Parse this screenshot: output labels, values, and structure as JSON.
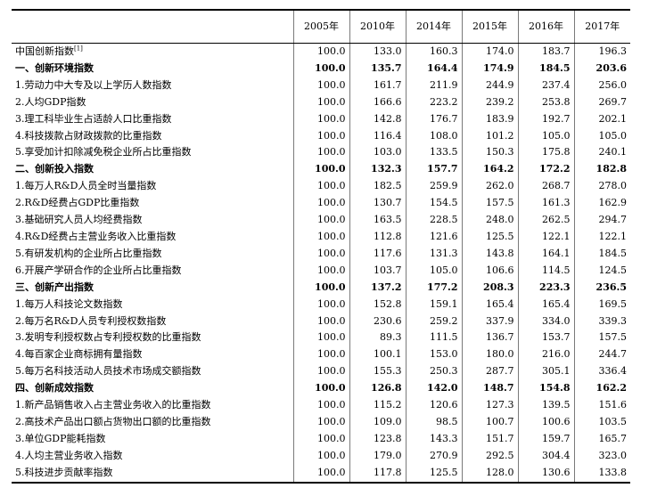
{
  "years": [
    "2005年",
    "2010年",
    "2014年",
    "2015年",
    "2016年",
    "2017年"
  ],
  "rows": [
    {
      "label": "中国创新指数",
      "note": "[1]",
      "bold": false,
      "values": [
        "100.0",
        "133.0",
        "160.3",
        "174.0",
        "183.7",
        "196.3"
      ]
    },
    {
      "label": "一、创新环境指数",
      "bold": true,
      "values": [
        "100.0",
        "135.7",
        "164.4",
        "174.9",
        "184.5",
        "203.6"
      ]
    },
    {
      "label": "1.劳动力中大专及以上学历人数指数",
      "bold": false,
      "values": [
        "100.0",
        "161.7",
        "211.9",
        "244.9",
        "237.4",
        "256.0"
      ]
    },
    {
      "label": "2.人均GDP指数",
      "bold": false,
      "values": [
        "100.0",
        "166.6",
        "223.2",
        "239.2",
        "253.8",
        "269.7"
      ]
    },
    {
      "label": "3.理工科毕业生占适龄人口比重指数",
      "bold": false,
      "values": [
        "100.0",
        "142.8",
        "176.7",
        "183.9",
        "192.7",
        "202.1"
      ]
    },
    {
      "label": "4.科技拨款占财政拨款的比重指数",
      "bold": false,
      "values": [
        "100.0",
        "116.4",
        "108.0",
        "101.2",
        "105.0",
        "105.0"
      ]
    },
    {
      "label": "5.享受加计扣除减免税企业所占比重指数",
      "bold": false,
      "values": [
        "100.0",
        "103.0",
        "133.5",
        "150.3",
        "175.8",
        "240.1"
      ]
    },
    {
      "label": "二、创新投入指数",
      "bold": true,
      "values": [
        "100.0",
        "132.3",
        "157.7",
        "164.2",
        "172.2",
        "182.8"
      ]
    },
    {
      "label": "1.每万人R&D人员全时当量指数",
      "bold": false,
      "values": [
        "100.0",
        "182.5",
        "259.9",
        "262.0",
        "268.7",
        "278.0"
      ]
    },
    {
      "label": "2.R&D经费占GDP比重指数",
      "bold": false,
      "values": [
        "100.0",
        "130.7",
        "154.5",
        "157.5",
        "161.3",
        "162.9"
      ]
    },
    {
      "label": "3.基础研究人员人均经费指数",
      "bold": false,
      "values": [
        "100.0",
        "163.5",
        "228.5",
        "248.0",
        "262.5",
        "294.7"
      ]
    },
    {
      "label": "4.R&D经费占主营业务收入比重指数",
      "bold": false,
      "values": [
        "100.0",
        "112.8",
        "121.6",
        "125.5",
        "122.1",
        "122.1"
      ]
    },
    {
      "label": "5.有研发机构的企业所占比重指数",
      "bold": false,
      "values": [
        "100.0",
        "117.6",
        "131.3",
        "143.8",
        "164.1",
        "184.5"
      ]
    },
    {
      "label": "6.开展产学研合作的企业所占比重指数",
      "bold": false,
      "values": [
        "100.0",
        "103.7",
        "105.0",
        "106.6",
        "114.5",
        "124.5"
      ]
    },
    {
      "label": "三、创新产出指数",
      "bold": true,
      "values": [
        "100.0",
        "137.2",
        "177.2",
        "208.3",
        "223.3",
        "236.5"
      ]
    },
    {
      "label": "1.每万人科技论文数指数",
      "bold": false,
      "values": [
        "100.0",
        "152.8",
        "159.1",
        "165.4",
        "165.4",
        "169.5"
      ]
    },
    {
      "label": "2.每万名R&D人员专利授权数指数",
      "bold": false,
      "values": [
        "100.0",
        "230.6",
        "259.2",
        "337.9",
        "334.0",
        "339.3"
      ]
    },
    {
      "label": "3.发明专利授权数占专利授权数的比重指数",
      "bold": false,
      "values": [
        "100.0",
        "89.3",
        "111.5",
        "136.7",
        "153.7",
        "157.5"
      ]
    },
    {
      "label": "4.每百家企业商标拥有量指数",
      "bold": false,
      "values": [
        "100.0",
        "100.1",
        "153.0",
        "180.0",
        "216.0",
        "244.7"
      ]
    },
    {
      "label": "5.每万名科技活动人员技术市场成交额指数",
      "bold": false,
      "values": [
        "100.0",
        "155.3",
        "250.3",
        "287.7",
        "305.1",
        "336.4"
      ]
    },
    {
      "label": "四、创新成效指数",
      "bold": true,
      "values": [
        "100.0",
        "126.8",
        "142.0",
        "148.7",
        "154.8",
        "162.2"
      ]
    },
    {
      "label": "1.新产品销售收入占主营业务收入的比重指数",
      "bold": false,
      "values": [
        "100.0",
        "115.2",
        "120.6",
        "127.3",
        "139.5",
        "151.6"
      ]
    },
    {
      "label": "2.高技术产品出口额占货物出口额的比重指数",
      "bold": false,
      "values": [
        "100.0",
        "109.0",
        "98.5",
        "100.7",
        "100.6",
        "103.5"
      ]
    },
    {
      "label": "3.单位GDP能耗指数",
      "bold": false,
      "values": [
        "100.0",
        "123.8",
        "143.3",
        "151.7",
        "159.7",
        "165.7"
      ]
    },
    {
      "label": "4.人均主营业务收入指数",
      "bold": false,
      "values": [
        "100.0",
        "179.0",
        "270.9",
        "292.5",
        "304.4",
        "323.0"
      ]
    },
    {
      "label": "5.科技进步贡献率指数",
      "bold": false,
      "values": [
        "100.0",
        "117.8",
        "125.5",
        "128.0",
        "130.6",
        "133.8"
      ]
    }
  ]
}
